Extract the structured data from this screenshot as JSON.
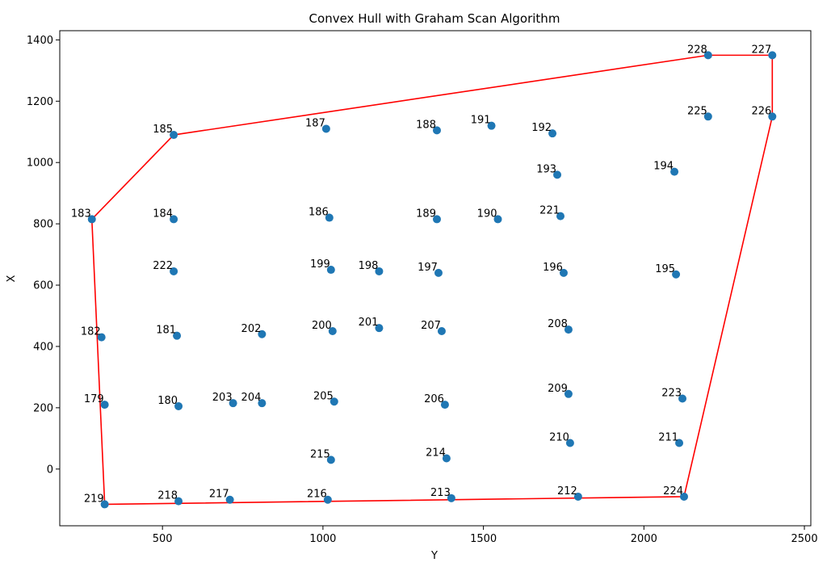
{
  "chart_data": {
    "type": "scatter",
    "title": "Convex Hull with Graham Scan Algorithm",
    "xlabel": "Y",
    "ylabel": "X",
    "xlim": [
      180,
      2520
    ],
    "ylim": [
      -185,
      1430
    ],
    "xticks": [
      500,
      1000,
      1500,
      2000,
      2500
    ],
    "yticks": [
      0,
      200,
      400,
      600,
      800,
      1000,
      1200,
      1400
    ],
    "grid": false,
    "colors": {
      "points": "#1f77b4",
      "hull": "#ff0000"
    },
    "points": [
      {
        "label": "179",
        "x": 320,
        "y": 210
      },
      {
        "label": "180",
        "x": 550,
        "y": 205
      },
      {
        "label": "181",
        "x": 545,
        "y": 435
      },
      {
        "label": "182",
        "x": 310,
        "y": 430
      },
      {
        "label": "183",
        "x": 280,
        "y": 815
      },
      {
        "label": "184",
        "x": 535,
        "y": 815
      },
      {
        "label": "185",
        "x": 535,
        "y": 1090
      },
      {
        "label": "186",
        "x": 1020,
        "y": 820
      },
      {
        "label": "187",
        "x": 1010,
        "y": 1110
      },
      {
        "label": "188",
        "x": 1355,
        "y": 1105
      },
      {
        "label": "189",
        "x": 1355,
        "y": 815
      },
      {
        "label": "190",
        "x": 1545,
        "y": 815
      },
      {
        "label": "191",
        "x": 1525,
        "y": 1120
      },
      {
        "label": "192",
        "x": 1715,
        "y": 1095
      },
      {
        "label": "193",
        "x": 1730,
        "y": 960
      },
      {
        "label": "194",
        "x": 2095,
        "y": 970
      },
      {
        "label": "195",
        "x": 2100,
        "y": 635
      },
      {
        "label": "196",
        "x": 1750,
        "y": 640
      },
      {
        "label": "197",
        "x": 1360,
        "y": 640
      },
      {
        "label": "198",
        "x": 1175,
        "y": 645
      },
      {
        "label": "199",
        "x": 1025,
        "y": 650
      },
      {
        "label": "200",
        "x": 1030,
        "y": 450
      },
      {
        "label": "201",
        "x": 1175,
        "y": 460
      },
      {
        "label": "202",
        "x": 810,
        "y": 440
      },
      {
        "label": "203",
        "x": 720,
        "y": 215
      },
      {
        "label": "204",
        "x": 810,
        "y": 215
      },
      {
        "label": "205",
        "x": 1035,
        "y": 220
      },
      {
        "label": "206",
        "x": 1380,
        "y": 210
      },
      {
        "label": "207",
        "x": 1370,
        "y": 450
      },
      {
        "label": "208",
        "x": 1765,
        "y": 455
      },
      {
        "label": "209",
        "x": 1765,
        "y": 245
      },
      {
        "label": "210",
        "x": 1770,
        "y": 85
      },
      {
        "label": "211",
        "x": 2110,
        "y": 85
      },
      {
        "label": "212",
        "x": 1795,
        "y": -90
      },
      {
        "label": "213",
        "x": 1400,
        "y": -95
      },
      {
        "label": "214",
        "x": 1385,
        "y": 35
      },
      {
        "label": "215",
        "x": 1025,
        "y": 30
      },
      {
        "label": "216",
        "x": 1015,
        "y": -100
      },
      {
        "label": "217",
        "x": 710,
        "y": -100
      },
      {
        "label": "218",
        "x": 550,
        "y": -105
      },
      {
        "label": "219",
        "x": 320,
        "y": -115
      },
      {
        "label": "221",
        "x": 1740,
        "y": 825
      },
      {
        "label": "222",
        "x": 535,
        "y": 645
      },
      {
        "label": "223",
        "x": 2120,
        "y": 230
      },
      {
        "label": "224",
        "x": 2125,
        "y": -90
      },
      {
        "label": "225",
        "x": 2200,
        "y": 1150
      },
      {
        "label": "226",
        "x": 2400,
        "y": 1150
      },
      {
        "label": "227",
        "x": 2400,
        "y": 1350
      },
      {
        "label": "228",
        "x": 2200,
        "y": 1350
      }
    ],
    "hull": [
      "219",
      "224",
      "226",
      "227",
      "228",
      "185",
      "183",
      "219"
    ]
  }
}
